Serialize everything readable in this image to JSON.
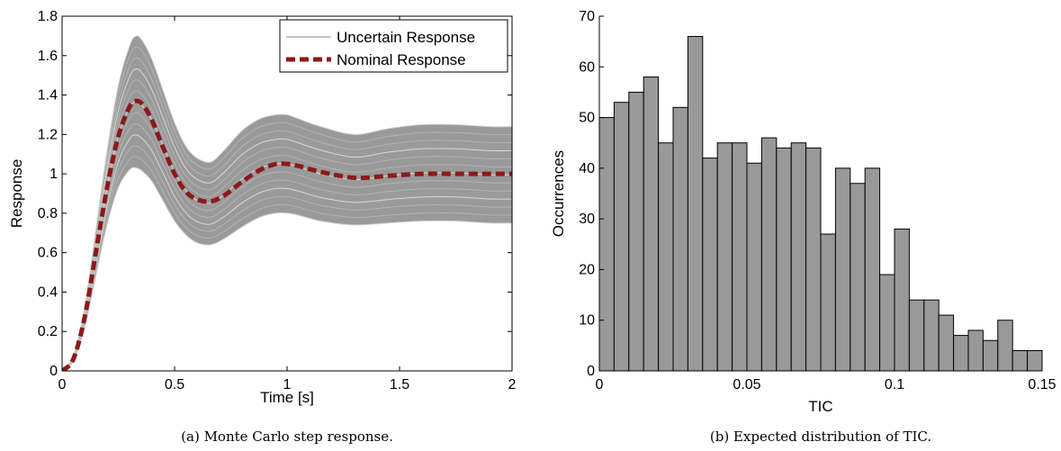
{
  "chart_data": [
    {
      "type": "line",
      "caption": "(a)  Monte Carlo step response.",
      "xlabel": "Time [s]",
      "ylabel": "Response",
      "xlim": [
        0,
        2
      ],
      "ylim": [
        0,
        1.8
      ],
      "xticks": [
        0,
        0.5,
        1,
        1.5,
        2
      ],
      "xtick_labels": [
        "0",
        "0.5",
        "1",
        "1.5",
        "2"
      ],
      "yticks": [
        0,
        0.2,
        0.4,
        0.6,
        0.8,
        1,
        1.2,
        1.4,
        1.6,
        1.8
      ],
      "ytick_labels": [
        "0",
        "0.2",
        "0.4",
        "0.6",
        "0.8",
        "1",
        "1.2",
        "1.4",
        "1.6",
        "1.8"
      ],
      "legend_position": "top-right",
      "series": [
        {
          "name": "Uncertain Response",
          "color": "#a0a0a0",
          "style": "solid",
          "upper_envelope": {
            "x": [
              0,
              0.05,
              0.1,
              0.15,
              0.2,
              0.25,
              0.3,
              0.33,
              0.36,
              0.4,
              0.45,
              0.5,
              0.55,
              0.6,
              0.66,
              0.72,
              0.8,
              0.88,
              0.95,
              1.0,
              1.05,
              1.15,
              1.3,
              1.45,
              1.6,
              1.75,
              1.9,
              2.0
            ],
            "y": [
              0,
              0.08,
              0.32,
              0.72,
              1.12,
              1.45,
              1.65,
              1.7,
              1.67,
              1.58,
              1.42,
              1.26,
              1.14,
              1.08,
              1.06,
              1.12,
              1.22,
              1.28,
              1.3,
              1.3,
              1.28,
              1.24,
              1.2,
              1.23,
              1.25,
              1.25,
              1.24,
              1.24
            ]
          },
          "lower_envelope": {
            "x": [
              0,
              0.05,
              0.1,
              0.15,
              0.2,
              0.25,
              0.3,
              0.33,
              0.36,
              0.4,
              0.45,
              0.5,
              0.55,
              0.6,
              0.66,
              0.72,
              0.8,
              0.88,
              0.95,
              1.0,
              1.05,
              1.15,
              1.3,
              1.45,
              1.6,
              1.75,
              1.9,
              2.0
            ],
            "y": [
              0,
              0.05,
              0.22,
              0.48,
              0.74,
              0.93,
              1.02,
              1.03,
              1.01,
              0.96,
              0.86,
              0.76,
              0.69,
              0.65,
              0.64,
              0.67,
              0.73,
              0.78,
              0.8,
              0.8,
              0.79,
              0.76,
              0.74,
              0.75,
              0.76,
              0.76,
              0.75,
              0.75
            ]
          },
          "ensemble_count": 12
        },
        {
          "name": "Nominal Response",
          "color": "#8b1a1a",
          "style": "dashed",
          "x": [
            0,
            0.05,
            0.1,
            0.15,
            0.2,
            0.25,
            0.3,
            0.33,
            0.36,
            0.4,
            0.45,
            0.5,
            0.55,
            0.6,
            0.66,
            0.72,
            0.8,
            0.88,
            0.95,
            1.0,
            1.05,
            1.15,
            1.3,
            1.45,
            1.6,
            1.75,
            1.9,
            2.0
          ],
          "y": [
            0,
            0.06,
            0.27,
            0.6,
            0.93,
            1.19,
            1.34,
            1.37,
            1.35,
            1.27,
            1.13,
            1.0,
            0.91,
            0.87,
            0.86,
            0.89,
            0.96,
            1.02,
            1.05,
            1.05,
            1.04,
            1.01,
            0.98,
            0.99,
            1.0,
            1.0,
            1.0,
            1.0
          ]
        }
      ]
    },
    {
      "type": "bar",
      "caption": "(b)  Expected distribution of TIC.",
      "xlabel": "TIC",
      "ylabel": "Occurrences",
      "xlim": [
        0,
        0.15
      ],
      "ylim": [
        0,
        70
      ],
      "xticks": [
        0,
        0.05,
        0.1,
        0.15
      ],
      "xtick_labels": [
        "0",
        "0.05",
        "0.1",
        "0.15"
      ],
      "yticks": [
        0,
        10,
        20,
        30,
        40,
        50,
        60,
        70
      ],
      "ytick_labels": [
        "0",
        "10",
        "20",
        "30",
        "40",
        "50",
        "60",
        "70"
      ],
      "bar_color": "#999999",
      "bin_start": 0,
      "bin_width": 0.005,
      "values": [
        50,
        53,
        55,
        58,
        45,
        52,
        66,
        42,
        45,
        45,
        41,
        46,
        44,
        45,
        44,
        27,
        40,
        37,
        40,
        19,
        28,
        14,
        14,
        11,
        7,
        8,
        6,
        10,
        4,
        4
      ]
    }
  ]
}
